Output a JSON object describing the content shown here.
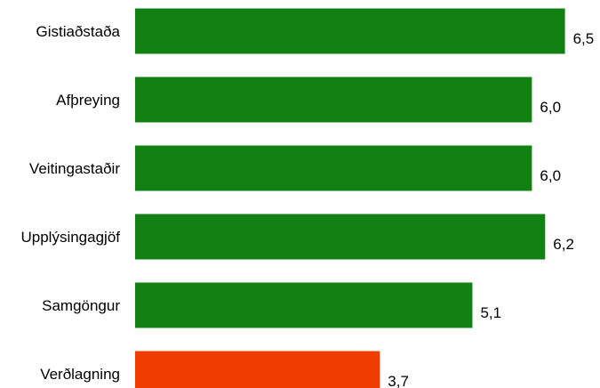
{
  "chart_data": {
    "type": "bar",
    "orientation": "horizontal",
    "categories": [
      "Gistiaðstaða",
      "Afþreying",
      "Veitingastaðir",
      "Upplýsingagjöf",
      "Samgöngur",
      "Verðlagning"
    ],
    "values": [
      6.5,
      6.0,
      6.0,
      6.2,
      5.1,
      3.7
    ],
    "value_labels": [
      "6,5",
      "6,0",
      "6,0",
      "6,2",
      "5,1",
      "3,7"
    ],
    "bar_colors": [
      "#138013",
      "#138013",
      "#138013",
      "#138013",
      "#138013",
      "#f03c00"
    ],
    "xlim": [
      0,
      7.87
    ],
    "grid": false,
    "title": "",
    "xlabel": "",
    "ylabel": ""
  }
}
